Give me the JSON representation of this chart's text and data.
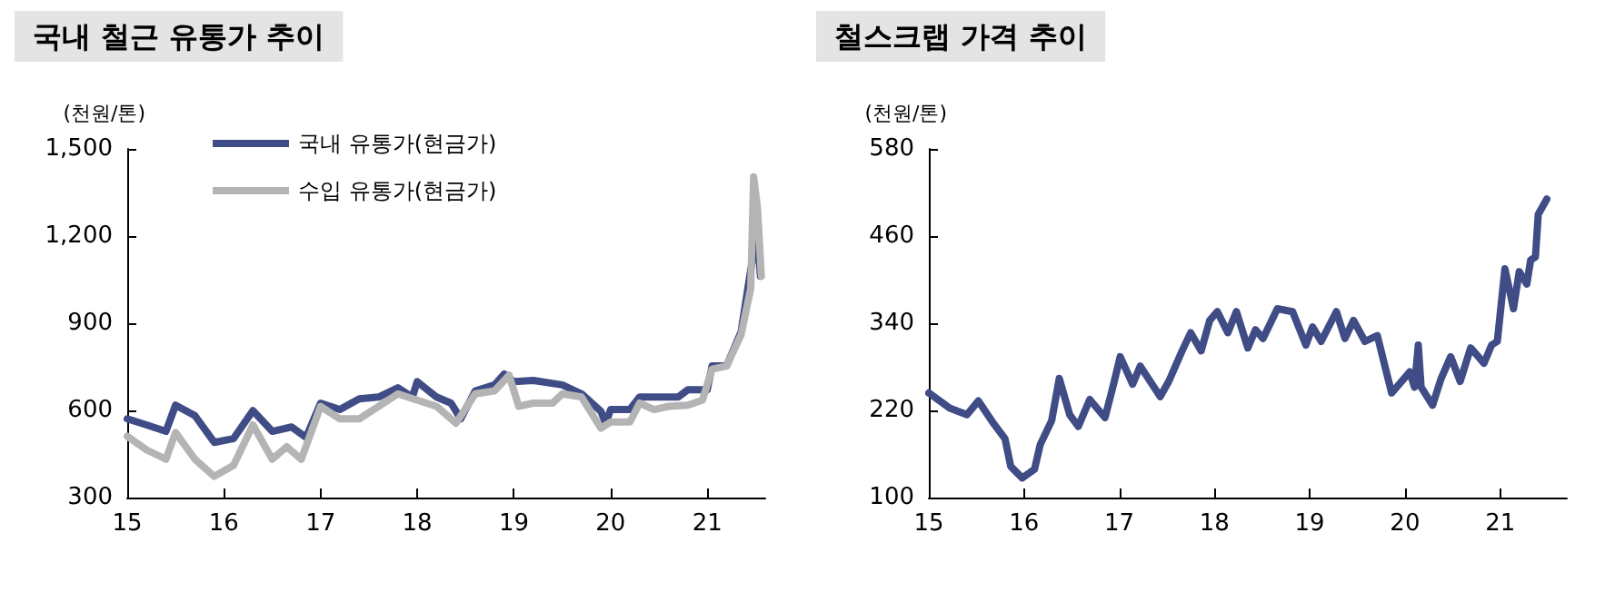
{
  "chart_data": [
    {
      "type": "line",
      "title": "국내 철근 유통가 추이",
      "ylabel": "(천원/톤)",
      "xlim": [
        15,
        21.6
      ],
      "xticks": [
        15,
        16,
        17,
        18,
        19,
        20,
        21
      ],
      "ylim": [
        300,
        1500
      ],
      "yticks": [
        300,
        600,
        900,
        {
          "value": 1200,
          "label": "1,200"
        },
        {
          "value": 1500,
          "label": "1,500"
        }
      ],
      "grid": false,
      "legend": "top left",
      "marker": "none",
      "line_style": "solid",
      "series": [
        {
          "name": "국내 유통가(현금가)",
          "color": "#3f4c85",
          "x": [
            15.0,
            15.2,
            15.4,
            15.5,
            15.7,
            15.9,
            16.1,
            16.3,
            16.5,
            16.7,
            16.85,
            17.0,
            17.2,
            17.4,
            17.6,
            17.8,
            17.95,
            18.0,
            18.2,
            18.35,
            18.45,
            18.6,
            18.8,
            18.9,
            19.0,
            19.2,
            19.5,
            19.7,
            19.9,
            19.95,
            20.0,
            20.2,
            20.3,
            20.5,
            20.7,
            20.8,
            21.0,
            21.05,
            21.2,
            21.35,
            21.45,
            21.52,
            21.55
          ],
          "values": [
            571,
            550,
            528,
            618,
            582,
            490,
            503,
            599,
            528,
            543,
            507,
            625,
            603,
            640,
            646,
            678,
            646,
            699,
            646,
            625,
            571,
            667,
            688,
            725,
            699,
            703,
            688,
            657,
            597,
            554,
            603,
            603,
            646,
            646,
            646,
            671,
            671,
            753,
            753,
            870,
            1084,
            1212,
            1062
          ]
        },
        {
          "name": "수입 유통가(현금가)",
          "color": "#b4b4b4",
          "x": [
            15.0,
            15.2,
            15.4,
            15.5,
            15.7,
            15.9,
            16.1,
            16.3,
            16.5,
            16.65,
            16.8,
            17.0,
            17.2,
            17.4,
            17.6,
            17.8,
            18.0,
            18.2,
            18.4,
            18.6,
            18.8,
            18.95,
            19.05,
            19.2,
            19.4,
            19.5,
            19.7,
            19.9,
            20.0,
            20.2,
            20.3,
            20.45,
            20.6,
            20.8,
            20.95,
            21.05,
            21.2,
            21.35,
            21.45,
            21.48,
            21.52,
            21.56
          ],
          "values": [
            511,
            464,
            432,
            524,
            432,
            373,
            411,
            550,
            432,
            475,
            432,
            614,
            571,
            571,
            614,
            657,
            635,
            614,
            556,
            657,
            667,
            721,
            614,
            625,
            625,
            657,
            646,
            539,
            560,
            560,
            625,
            603,
            614,
            618,
            635,
            742,
            753,
            860,
            1020,
            1404,
            1297,
            1062
          ]
        }
      ]
    },
    {
      "type": "line",
      "title": "철스크랩 가격 추이",
      "ylabel": "(천원/톤)",
      "xlim": [
        15,
        21.7
      ],
      "xticks": [
        15,
        16,
        17,
        18,
        19,
        20,
        21
      ],
      "ylim": [
        100,
        580
      ],
      "yticks": [
        100,
        220,
        340,
        460,
        580
      ],
      "grid": false,
      "legend": false,
      "marker": "none",
      "line_style": "solid",
      "series": [
        {
          "color": "#3f4c85",
          "x": [
            15.0,
            15.22,
            15.4,
            15.52,
            15.68,
            15.8,
            15.86,
            15.98,
            16.11,
            16.17,
            16.29,
            16.37,
            16.48,
            16.57,
            16.69,
            16.85,
            16.94,
            17.01,
            17.14,
            17.22,
            17.43,
            17.52,
            17.66,
            17.75,
            17.86,
            17.95,
            18.03,
            18.14,
            18.23,
            18.35,
            18.43,
            18.51,
            18.66,
            18.82,
            18.96,
            19.03,
            19.12,
            19.28,
            19.37,
            19.46,
            19.58,
            19.71,
            19.86,
            19.94,
            20.05,
            20.1,
            20.14,
            20.17,
            20.29,
            20.38,
            20.48,
            20.58,
            20.69,
            20.83,
            20.91,
            20.97,
            21.05,
            21.14,
            21.2,
            21.28,
            21.32,
            21.37,
            21.4,
            21.49
          ],
          "values": [
            244,
            223,
            214,
            233,
            202,
            181,
            143,
            127,
            139,
            173,
            206,
            264,
            214,
            198,
            235,
            210,
            256,
            294,
            256,
            281,
            239,
            260,
            302,
            327,
            302,
            344,
            356,
            327,
            356,
            306,
            331,
            319,
            360,
            356,
            310,
            335,
            315,
            356,
            319,
            344,
            315,
            323,
            244,
            256,
            273,
            252,
            310,
            252,
            227,
            264,
            294,
            260,
            306,
            285,
            310,
            315,
            415,
            360,
            411,
            394,
            427,
            431,
            490,
            511
          ]
        }
      ]
    }
  ]
}
